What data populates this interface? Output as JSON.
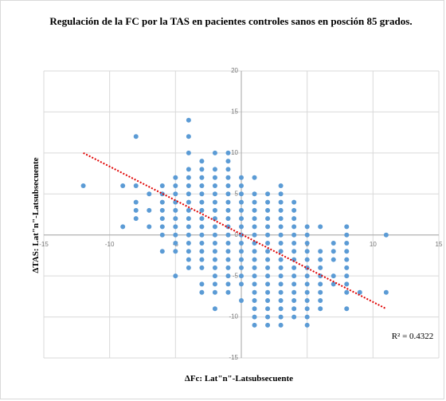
{
  "chart_data": {
    "type": "scatter",
    "title": "Regulación de la  FC por la TAS en pacientes controles sanos en posción 85 grados.",
    "x_label": "ΔFc: Lat\"n\"-Latsubsecuente",
    "y_label": "ΔTAS: Lat\"n\"-Latsubsecuente",
    "annotation": "R² = 0.4322",
    "xlim": [
      -15,
      15
    ],
    "ylim": [
      -15,
      20
    ],
    "xticks": [
      -15,
      -10,
      -5,
      5,
      10,
      15
    ],
    "yticks": [
      -15,
      -10,
      -5,
      0,
      5,
      10,
      15,
      20
    ],
    "grid": true,
    "trendline": {
      "color": "#e00000",
      "x": [
        -12,
        11
      ],
      "y": [
        10,
        -9
      ]
    },
    "series": [
      {
        "color": "#5b9bd5",
        "x": [
          -12,
          -9,
          -9,
          -8,
          -8,
          -8,
          -8,
          -8,
          -7,
          -7,
          -7,
          -6,
          -6,
          -6,
          -6,
          -6,
          -6,
          -6,
          -6,
          -5,
          -5,
          -5,
          -5,
          -5,
          -5,
          -5,
          -5,
          -5,
          -5,
          -5,
          -4,
          -4,
          -4,
          -4,
          -4,
          -4,
          -4,
          -4,
          -4,
          -4,
          -4,
          -4,
          -4,
          -4,
          -4,
          -4,
          -3,
          -3,
          -3,
          -3,
          -3,
          -3,
          -3,
          -3,
          -3,
          -3,
          -3,
          -3,
          -3,
          -3,
          -3,
          -3,
          -2,
          -2,
          -2,
          -2,
          -2,
          -2,
          -2,
          -2,
          -2,
          -2,
          -2,
          -2,
          -2,
          -2,
          -2,
          -2,
          -2,
          -2,
          -1,
          -1,
          -1,
          -1,
          -1,
          -1,
          -1,
          -1,
          -1,
          -1,
          -1,
          -1,
          -1,
          -1,
          -1,
          -1,
          -1,
          -1,
          0,
          0,
          0,
          0,
          0,
          0,
          0,
          0,
          0,
          0,
          0,
          0,
          0,
          0,
          0,
          1,
          1,
          1,
          1,
          1,
          1,
          1,
          1,
          1,
          1,
          1,
          1,
          1,
          1,
          1,
          1,
          1,
          1,
          2,
          2,
          2,
          2,
          2,
          2,
          2,
          2,
          2,
          2,
          2,
          2,
          2,
          2,
          2,
          2,
          2,
          3,
          3,
          3,
          3,
          3,
          3,
          3,
          3,
          3,
          3,
          3,
          3,
          3,
          3,
          3,
          3,
          3,
          3,
          4,
          4,
          4,
          4,
          4,
          4,
          4,
          4,
          4,
          4,
          4,
          4,
          4,
          4,
          4,
          5,
          5,
          5,
          5,
          5,
          5,
          5,
          5,
          5,
          5,
          5,
          5,
          5,
          6,
          6,
          6,
          6,
          6,
          6,
          6,
          6,
          6,
          7,
          7,
          7,
          7,
          7,
          8,
          8,
          8,
          8,
          8,
          8,
          8,
          8,
          8,
          8,
          9,
          11,
          11
        ],
        "values": [
          6,
          6,
          1,
          12,
          6,
          4,
          3,
          2,
          5,
          3,
          1,
          6,
          5,
          4,
          3,
          2,
          1,
          0,
          -2,
          7,
          6,
          5,
          4,
          3,
          2,
          1,
          0,
          -1,
          -2,
          -5,
          14,
          12,
          10,
          8,
          7,
          6,
          5,
          4,
          3,
          2,
          1,
          0,
          -1,
          -2,
          -3,
          -4,
          9,
          8,
          7,
          6,
          5,
          4,
          3,
          2,
          1,
          0,
          -1,
          -2,
          -3,
          -4,
          -6,
          -7,
          10,
          8,
          7,
          6,
          5,
          4,
          3,
          2,
          1,
          0,
          -1,
          -2,
          -3,
          -4,
          -5,
          -6,
          -7,
          -9,
          10,
          9,
          8,
          7,
          6,
          5,
          4,
          3,
          2,
          1,
          0,
          -1,
          -2,
          -3,
          -4,
          -5,
          -6,
          -7,
          7,
          6,
          5,
          4,
          3,
          2,
          1,
          0,
          -1,
          -2,
          -3,
          -4,
          -5,
          -6,
          -8,
          7,
          5,
          4,
          3,
          2,
          1,
          0,
          -1,
          -2,
          -3,
          -4,
          -5,
          -6,
          -7,
          -8,
          -9,
          -10,
          -11,
          5,
          4,
          3,
          2,
          1,
          0,
          -1,
          -2,
          -3,
          -4,
          -5,
          -6,
          -7,
          -8,
          -9,
          -10,
          -11,
          6,
          5,
          4,
          3,
          2,
          1,
          0,
          -1,
          -2,
          -3,
          -4,
          -5,
          -6,
          -7,
          -8,
          -9,
          -10,
          -11,
          4,
          3,
          2,
          1,
          0,
          -1,
          -2,
          -3,
          -4,
          -5,
          -6,
          -7,
          -8,
          -9,
          -10,
          1,
          0,
          -1,
          -2,
          -3,
          -4,
          -5,
          -6,
          -7,
          -8,
          -9,
          -10,
          -11,
          1,
          -2,
          -3,
          -4,
          -5,
          -6,
          -7,
          -8,
          -9,
          -1,
          -2,
          -3,
          -5,
          -6,
          1,
          0,
          -1,
          -2,
          -3,
          -4,
          -5,
          -6,
          -7,
          -9,
          -7,
          0,
          -7
        ]
      }
    ]
  }
}
